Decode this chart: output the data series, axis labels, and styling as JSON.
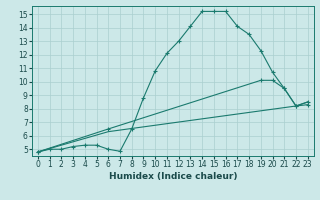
{
  "xlabel": "Humidex (Indice chaleur)",
  "bg_color": "#cce8e8",
  "line_color": "#1a7a6e",
  "grid_color": "#aacfcf",
  "xlim": [
    -0.5,
    23.5
  ],
  "ylim": [
    4.5,
    15.6
  ],
  "xticks": [
    0,
    1,
    2,
    3,
    4,
    5,
    6,
    7,
    8,
    9,
    10,
    11,
    12,
    13,
    14,
    15,
    16,
    17,
    18,
    19,
    20,
    21,
    22,
    23
  ],
  "yticks": [
    5,
    6,
    7,
    8,
    9,
    10,
    11,
    12,
    13,
    14,
    15
  ],
  "line1_x": [
    0,
    1,
    2,
    3,
    4,
    5,
    6,
    7,
    8,
    9,
    10,
    11,
    12,
    13,
    14,
    15,
    16,
    17,
    18,
    19,
    20,
    21,
    22,
    23
  ],
  "line1_y": [
    4.8,
    5.0,
    5.0,
    5.2,
    5.3,
    5.3,
    5.0,
    4.85,
    6.5,
    8.8,
    10.8,
    12.1,
    13.0,
    14.1,
    15.2,
    15.2,
    15.2,
    14.1,
    13.5,
    12.3,
    10.7,
    9.5,
    8.2,
    8.3
  ],
  "line2_x": [
    0,
    6,
    19,
    20,
    21,
    22,
    23
  ],
  "line2_y": [
    4.8,
    6.5,
    10.1,
    10.1,
    9.5,
    8.2,
    8.5
  ],
  "line3_x": [
    0,
    6,
    22,
    23
  ],
  "line3_y": [
    4.8,
    6.3,
    8.2,
    8.5
  ],
  "tick_fontsize": 5.5,
  "xlabel_fontsize": 6.5
}
